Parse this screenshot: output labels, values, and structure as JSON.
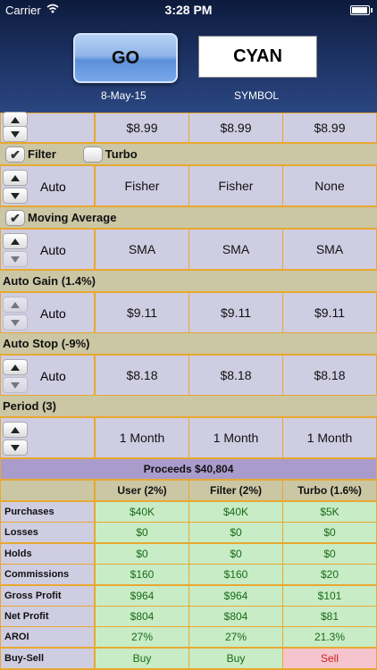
{
  "status_bar": {
    "carrier": "Carrier",
    "time": "3:28 PM"
  },
  "header": {
    "go_label": "GO",
    "symbol_value": "CYAN",
    "date": "8-May-15",
    "symbol_label": "SYMBOL"
  },
  "top_row": {
    "values": [
      "$8.99",
      "$8.99",
      "$8.99"
    ]
  },
  "filter_section": {
    "filter_label": "Filter",
    "filter_checked": true,
    "turbo_label": "Turbo",
    "turbo_checked": false
  },
  "filter_row": {
    "values": [
      "Auto",
      "Fisher",
      "Fisher",
      "None"
    ]
  },
  "ma_section": {
    "label": "Moving Average",
    "checked": true
  },
  "ma_row": {
    "values": [
      "Auto",
      "SMA",
      "SMA",
      "SMA"
    ]
  },
  "gain_section": {
    "label": "Auto Gain (1.4%)"
  },
  "gain_row": {
    "values": [
      "Auto",
      "$9.11",
      "$9.11",
      "$9.11"
    ]
  },
  "stop_section": {
    "label": "Auto Stop (-9%)"
  },
  "stop_row": {
    "values": [
      "Auto",
      "$8.18",
      "$8.18",
      "$8.18"
    ]
  },
  "period_section": {
    "label": "Period (3)"
  },
  "period_row": {
    "values": [
      "1 Month",
      "1 Month",
      "1 Month"
    ]
  },
  "results": {
    "title": "Proceeds $40,804",
    "columns": [
      "User (2%)",
      "Filter (2%)",
      "Turbo (1.6%)"
    ],
    "rows": [
      {
        "label": "Purchases",
        "values": [
          "$40K",
          "$40K",
          "$5K"
        ]
      },
      {
        "label": "Losses",
        "values": [
          "$0",
          "$0",
          "$0"
        ]
      },
      {
        "label": "Holds",
        "values": [
          "$0",
          "$0",
          "$0"
        ]
      },
      {
        "label": "Commissions",
        "values": [
          "$160",
          "$160",
          "$20"
        ]
      },
      {
        "label": "Gross Profit",
        "values": [
          "$964",
          "$964",
          "$101"
        ]
      },
      {
        "label": "Net Profit",
        "values": [
          "$804",
          "$804",
          "$81"
        ]
      },
      {
        "label": "AROI",
        "values": [
          "27%",
          "27%",
          "21.3%"
        ]
      },
      {
        "label": "Buy-Sell",
        "values": [
          "Buy",
          "Buy",
          "Sell"
        ]
      }
    ]
  },
  "colors": {
    "accent_border": "#e8a830",
    "cell_bg": "#cfcde2",
    "section_bg": "#cbc6a4",
    "positive_bg": "#c8ecc6",
    "sell_bg": "#f6c4cc"
  }
}
